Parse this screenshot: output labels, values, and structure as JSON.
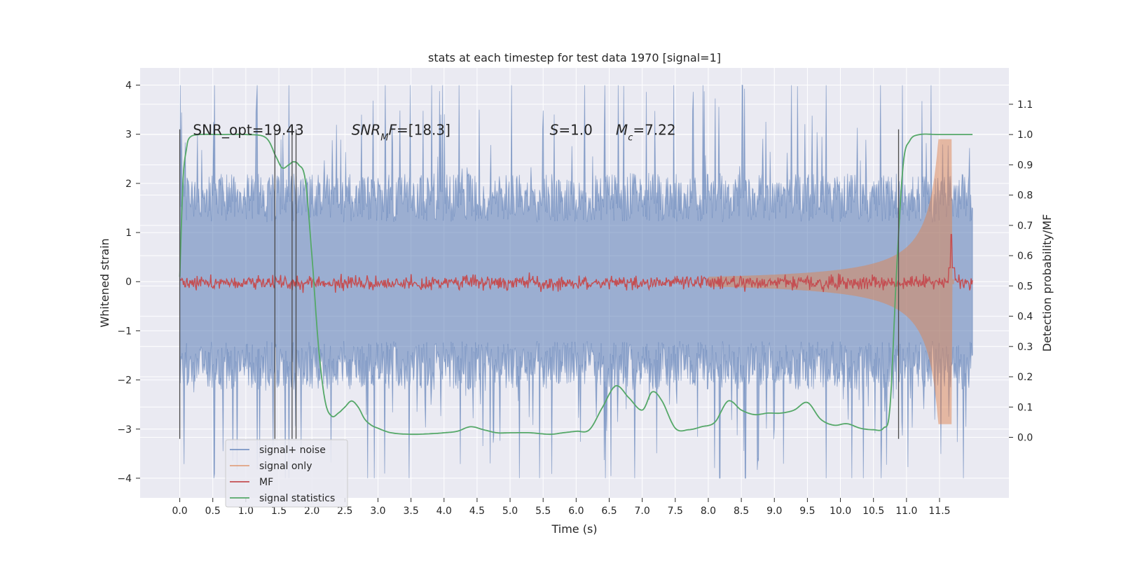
{
  "chart_data": {
    "type": "line",
    "title": "stats at each timestep for test data 1970 [signal=1]",
    "xlabel": "Time (s)",
    "ylabel_left": "Whitened strain",
    "ylabel_right": "Detection probability/MF",
    "xlim": [
      -0.6,
      12.55
    ],
    "ylim_left": [
      -4.4,
      4.35
    ],
    "ylim_right": [
      -0.2,
      1.22
    ],
    "xticks": [
      0.0,
      0.5,
      1.0,
      1.5,
      2.0,
      2.5,
      3.0,
      3.5,
      4.0,
      4.5,
      5.0,
      5.5,
      6.0,
      6.5,
      7.0,
      7.5,
      8.0,
      8.5,
      9.0,
      9.5,
      10.0,
      10.5,
      11.0,
      11.5
    ],
    "xtick_labels": [
      "0.0",
      "0.5",
      "1.0",
      "1.5",
      "2.0",
      "2.5",
      "3.0",
      "3.5",
      "4.0",
      "4.5",
      "5.0",
      "5.5",
      "6.0",
      "6.5",
      "7.0",
      "7.5",
      "8.0",
      "8.5",
      "9.0",
      "9.5",
      "10.0",
      "10.5",
      "11.0",
      "11.5"
    ],
    "yticks_left": [
      -4,
      -3,
      -2,
      -1,
      0,
      1,
      2,
      3,
      4
    ],
    "ytick_labels_left": [
      "−4",
      "−3",
      "−2",
      "−1",
      "0",
      "1",
      "2",
      "3",
      "4"
    ],
    "yticks_right": [
      0.0,
      0.1,
      0.2,
      0.3,
      0.4,
      0.5,
      0.6,
      0.7,
      0.8,
      0.9,
      1.0,
      1.1
    ],
    "ytick_labels_right": [
      "0.0",
      "0.1",
      "0.2",
      "0.3",
      "0.4",
      "0.5",
      "0.6",
      "0.7",
      "0.8",
      "0.9",
      "1.0",
      "1.1"
    ],
    "annotations": [
      {
        "text": "SNR_opt=19.43",
        "x": 0.2,
        "y": 3.1
      },
      {
        "text": "SNR_MF=[18.3]",
        "x": 2.6,
        "y": 3.1
      },
      {
        "text": "S=1.0",
        "x": 5.6,
        "y": 3.1
      },
      {
        "text": "M_c=7.22",
        "x": 6.6,
        "y": 3.1
      }
    ],
    "vertical_lines": [
      0.0,
      1.44,
      1.7,
      1.76,
      10.88
    ],
    "vline_range": [
      -3.2,
      3.1
    ],
    "series": [
      {
        "name": "signal+ noise",
        "color": "#4c72b0",
        "alpha": 0.5,
        "kind": "noise",
        "t_range": [
          0.0,
          12.0
        ],
        "amplitude": 2.2,
        "peak": 4.0
      },
      {
        "name": "signal only",
        "color": "#dd8452",
        "alpha": 0.5,
        "kind": "chirp",
        "t_start": 8.0,
        "t_merge": 11.68,
        "amp_at_8": 0.1,
        "amp_at_11": 0.7,
        "amp_peak": 2.9
      },
      {
        "name": "MF",
        "color": "#c44e52",
        "kind": "mf",
        "base": 0.51,
        "noise": 0.012,
        "spike_at": 11.68,
        "spike_value": 0.67
      },
      {
        "name": "signal statistics",
        "color": "#55a868",
        "kind": "stat",
        "t": [
          0.0,
          0.05,
          0.1,
          0.15,
          0.3,
          0.6,
          1.0,
          1.3,
          1.45,
          1.55,
          1.65,
          1.72,
          1.8,
          1.9,
          2.0,
          2.1,
          2.2,
          2.3,
          2.4,
          2.5,
          2.6,
          2.7,
          2.8,
          2.9,
          3.0,
          3.2,
          3.5,
          3.8,
          4.0,
          4.2,
          4.4,
          4.6,
          4.8,
          5.0,
          5.3,
          5.6,
          5.8,
          6.0,
          6.2,
          6.4,
          6.6,
          6.8,
          7.0,
          7.15,
          7.3,
          7.5,
          7.7,
          7.9,
          8.1,
          8.3,
          8.5,
          8.7,
          8.9,
          9.1,
          9.3,
          9.5,
          9.7,
          9.9,
          10.1,
          10.3,
          10.5,
          10.65,
          10.75,
          10.85,
          10.95,
          11.05,
          11.2,
          11.5,
          12.0
        ],
        "v": [
          0.53,
          0.85,
          0.95,
          0.99,
          1.0,
          1.0,
          1.0,
          0.99,
          0.93,
          0.89,
          0.9,
          0.91,
          0.9,
          0.85,
          0.6,
          0.3,
          0.12,
          0.07,
          0.08,
          0.1,
          0.12,
          0.1,
          0.06,
          0.04,
          0.03,
          0.015,
          0.01,
          0.012,
          0.015,
          0.02,
          0.035,
          0.025,
          0.015,
          0.015,
          0.015,
          0.01,
          0.015,
          0.02,
          0.025,
          0.1,
          0.17,
          0.13,
          0.09,
          0.15,
          0.12,
          0.03,
          0.025,
          0.035,
          0.05,
          0.12,
          0.09,
          0.075,
          0.08,
          0.08,
          0.09,
          0.115,
          0.06,
          0.04,
          0.045,
          0.03,
          0.025,
          0.03,
          0.1,
          0.55,
          0.9,
          0.98,
          1.0,
          1.0,
          1.0
        ]
      }
    ],
    "legend": {
      "placement": "lower-left",
      "entries": [
        "signal+ noise",
        "signal only",
        "MF",
        "signal statistics"
      ]
    },
    "grid": true
  }
}
